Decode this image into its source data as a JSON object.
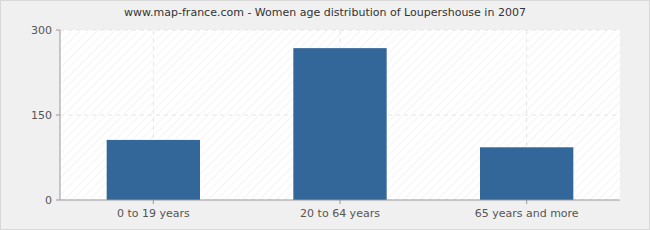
{
  "chart_data": {
    "type": "bar",
    "title": "www.map-france.com - Women age distribution of Loupershouse in 2007",
    "categories": [
      "0 to 19 years",
      "20 to 64 years",
      "65 years and more"
    ],
    "values": [
      106,
      268,
      93
    ],
    "color": "#336699",
    "ylim": [
      0,
      300
    ],
    "yticks": [
      0,
      150,
      300
    ],
    "grid": true
  }
}
